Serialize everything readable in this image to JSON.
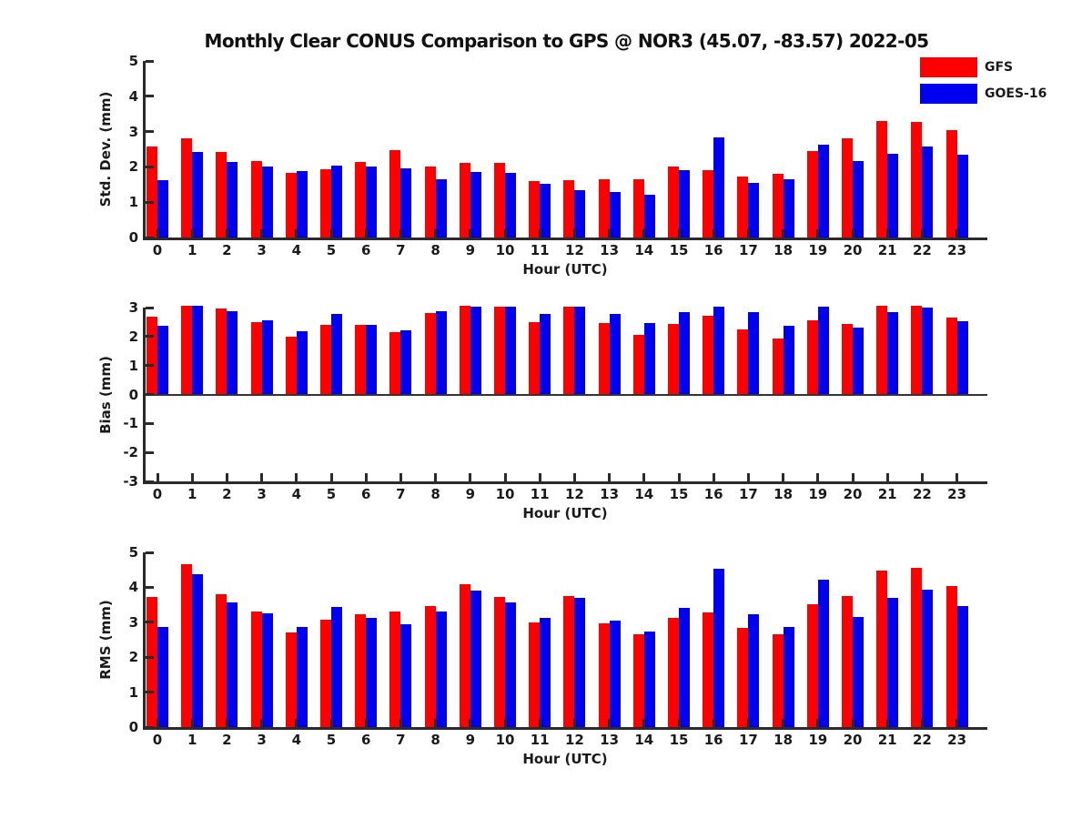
{
  "title": "Monthly Clear CONUS Comparison to GPS @ NOR3 (45.07, -83.57) 2022-05",
  "legend": [
    {
      "label": "GFS",
      "color": "#ff0000"
    },
    {
      "label": "GOES-16",
      "color": "#0000f0"
    }
  ],
  "chart_data": [
    {
      "id": "std-dev",
      "type": "bar",
      "ylabel": "Std. Dev. (mm)",
      "xlabel": "Hour (UTC)",
      "ylim": [
        0,
        5
      ],
      "yticks": [
        5,
        4,
        3,
        2,
        1,
        0
      ],
      "grid": false,
      "legend_position": "top-right-outside",
      "categories": [
        0,
        1,
        2,
        3,
        4,
        5,
        6,
        7,
        8,
        9,
        10,
        11,
        12,
        13,
        14,
        15,
        16,
        17,
        18,
        19,
        20,
        21,
        22,
        23
      ],
      "series": [
        {
          "name": "GFS",
          "color": "#ff0000",
          "values": [
            2.57,
            2.8,
            2.42,
            2.16,
            1.83,
            1.93,
            2.13,
            2.47,
            2.02,
            2.12,
            2.12,
            1.61,
            1.63,
            1.64,
            1.65,
            2.02,
            1.92,
            1.73,
            1.8,
            2.44,
            2.8,
            3.29,
            3.27,
            3.04
          ]
        },
        {
          "name": "GOES-16",
          "color": "#0000f0",
          "values": [
            1.63,
            2.42,
            2.13,
            2.0,
            1.87,
            2.03,
            2.0,
            1.95,
            1.64,
            1.85,
            1.82,
            1.51,
            1.35,
            1.28,
            1.2,
            1.9,
            2.83,
            1.54,
            1.64,
            2.62,
            2.16,
            2.37,
            2.58,
            2.34
          ]
        }
      ]
    },
    {
      "id": "bias",
      "type": "bar",
      "ylabel": "Bias (mm)",
      "xlabel": "Hour (UTC)",
      "ylim": [
        -3,
        3
      ],
      "yticks": [
        3,
        2,
        1,
        0,
        -1,
        -2,
        -3
      ],
      "grid": false,
      "categories": [
        0,
        1,
        2,
        3,
        4,
        5,
        6,
        7,
        8,
        9,
        10,
        11,
        12,
        13,
        14,
        15,
        16,
        17,
        18,
        19,
        20,
        21,
        22,
        23
      ],
      "series": [
        {
          "name": "GFS",
          "color": "#ff0000",
          "values": [
            2.7,
            3.05,
            2.97,
            2.49,
            2.0,
            2.4,
            2.4,
            2.16,
            2.82,
            3.05,
            3.03,
            2.49,
            3.02,
            2.47,
            2.07,
            2.42,
            2.71,
            2.26,
            1.94,
            2.55,
            2.44,
            3.05,
            3.05,
            2.65
          ]
        },
        {
          "name": "GOES-16",
          "color": "#0000f0",
          "values": [
            2.37,
            3.05,
            2.87,
            2.56,
            2.18,
            2.77,
            2.4,
            2.23,
            2.89,
            3.02,
            3.02,
            2.77,
            3.02,
            2.79,
            2.47,
            2.84,
            3.02,
            2.84,
            2.36,
            3.02,
            2.31,
            2.85,
            2.99,
            2.54
          ]
        }
      ]
    },
    {
      "id": "rms",
      "type": "bar",
      "ylabel": "RMS (mm)",
      "xlabel": "Hour (UTC)",
      "ylim": [
        0,
        5
      ],
      "yticks": [
        5,
        4,
        3,
        2,
        1,
        0
      ],
      "grid": false,
      "categories": [
        0,
        1,
        2,
        3,
        4,
        5,
        6,
        7,
        8,
        9,
        10,
        11,
        12,
        13,
        14,
        15,
        16,
        17,
        18,
        19,
        20,
        21,
        22,
        23
      ],
      "series": [
        {
          "name": "GFS",
          "color": "#ff0000",
          "values": [
            3.72,
            4.66,
            3.81,
            3.32,
            2.71,
            3.07,
            3.24,
            3.32,
            3.46,
            4.08,
            3.73,
            3.0,
            3.76,
            2.96,
            2.65,
            3.13,
            3.29,
            2.83,
            2.65,
            3.52,
            3.74,
            4.47,
            4.57,
            4.03
          ]
        },
        {
          "name": "GOES-16",
          "color": "#0000f0",
          "values": [
            2.87,
            4.37,
            3.57,
            3.26,
            2.86,
            3.44,
            3.12,
            2.94,
            3.3,
            3.9,
            3.57,
            3.13,
            3.7,
            3.04,
            2.74,
            3.41,
            4.52,
            3.23,
            2.87,
            4.21,
            3.16,
            3.71,
            3.93,
            3.46
          ]
        }
      ]
    }
  ]
}
